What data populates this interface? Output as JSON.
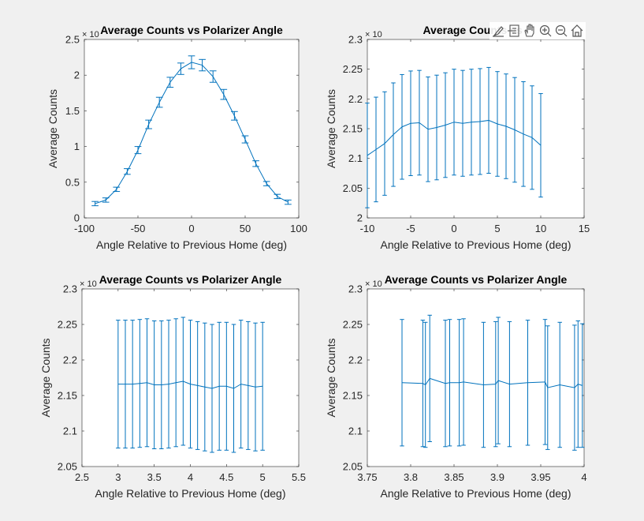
{
  "colors": {
    "series": "#0072BD",
    "background": "#f0f0f0",
    "axes": "#ffffff",
    "axis_line": "#262626"
  },
  "toolbar": {
    "icons": [
      "edit-plot-icon",
      "data-tips-icon",
      "pan-icon",
      "zoom-in-icon",
      "zoom-out-icon",
      "home-icon"
    ]
  },
  "chart_data": [
    {
      "type": "line",
      "title": "Average Counts vs Polarizer Angle",
      "xlabel": "Angle Relative to Previous Home (deg)",
      "ylabel": "Average Counts",
      "exponent": "× 10",
      "xlim": [
        -100,
        100
      ],
      "ylim": [
        0,
        2.5
      ],
      "xticks": [
        -100,
        -50,
        0,
        50,
        100
      ],
      "yticks": [
        0,
        0.5,
        1,
        1.5,
        2,
        2.5
      ],
      "xtick_labels": [
        "-100",
        "-50",
        "0",
        "50",
        "100"
      ],
      "ytick_labels": [
        "0",
        "0.5",
        "1",
        "1.5",
        "2",
        "2.5"
      ],
      "grid": false,
      "series": [
        {
          "x": [
            -90,
            -80,
            -70,
            -60,
            -50,
            -40,
            -30,
            -20,
            -10,
            0,
            10,
            20,
            30,
            40,
            50,
            60,
            70,
            80,
            90
          ],
          "y": [
            0.2,
            0.25,
            0.4,
            0.65,
            0.95,
            1.31,
            1.62,
            1.9,
            2.09,
            2.18,
            2.14,
            1.98,
            1.73,
            1.43,
            1.1,
            0.76,
            0.48,
            0.3,
            0.22
          ],
          "err": [
            0.03,
            0.03,
            0.03,
            0.04,
            0.05,
            0.06,
            0.07,
            0.07,
            0.08,
            0.09,
            0.08,
            0.08,
            0.07,
            0.06,
            0.05,
            0.04,
            0.03,
            0.03,
            0.03
          ]
        }
      ]
    },
    {
      "type": "line",
      "title": "Average Counts vs I",
      "xlabel": "Angle Relative to Previous Home (deg)",
      "ylabel": "Average Counts",
      "exponent": "× 10",
      "xlim": [
        -10,
        15
      ],
      "ylim": [
        2,
        2.3
      ],
      "xticks": [
        -10,
        -5,
        0,
        5,
        10,
        15
      ],
      "yticks": [
        2,
        2.05,
        2.1,
        2.15,
        2.2,
        2.25,
        2.3
      ],
      "xtick_labels": [
        "-10",
        "-5",
        "0",
        "5",
        "10",
        "15"
      ],
      "ytick_labels": [
        "2",
        "2.05",
        "2.1",
        "2.15",
        "2.2",
        "2.25",
        "2.3"
      ],
      "grid": false,
      "series": [
        {
          "x": [
            -10,
            -9,
            -8,
            -7,
            -6,
            -5,
            -4,
            -3,
            -2,
            -1,
            0,
            1,
            2,
            3,
            4,
            5,
            6,
            7,
            8,
            9,
            10
          ],
          "y": [
            2.105,
            2.115,
            2.125,
            2.14,
            2.153,
            2.159,
            2.16,
            2.149,
            2.152,
            2.156,
            2.161,
            2.159,
            2.161,
            2.162,
            2.164,
            2.158,
            2.154,
            2.148,
            2.141,
            2.135,
            2.122
          ],
          "err": [
            0.088,
            0.088,
            0.087,
            0.087,
            0.088,
            0.088,
            0.088,
            0.088,
            0.088,
            0.088,
            0.089,
            0.089,
            0.089,
            0.089,
            0.089,
            0.088,
            0.088,
            0.088,
            0.088,
            0.087,
            0.087
          ]
        }
      ]
    },
    {
      "type": "line",
      "title": "Average Counts vs Polarizer Angle",
      "xlabel": "Angle Relative to Previous Home (deg)",
      "ylabel": "Average Counts",
      "exponent": "× 10",
      "xlim": [
        2.5,
        5.5
      ],
      "ylim": [
        2.05,
        2.3
      ],
      "xticks": [
        2.5,
        3,
        3.5,
        4,
        4.5,
        5,
        5.5
      ],
      "yticks": [
        2.05,
        2.1,
        2.15,
        2.2,
        2.25,
        2.3
      ],
      "xtick_labels": [
        "2.5",
        "3",
        "3.5",
        "4",
        "4.5",
        "5",
        "5.5"
      ],
      "ytick_labels": [
        "2.05",
        "2.1",
        "2.15",
        "2.2",
        "2.25",
        "2.3"
      ],
      "grid": false,
      "series": [
        {
          "x": [
            3.0,
            3.1,
            3.2,
            3.3,
            3.4,
            3.5,
            3.6,
            3.7,
            3.8,
            3.9,
            4.0,
            4.1,
            4.2,
            4.3,
            4.4,
            4.5,
            4.6,
            4.7,
            4.8,
            4.9,
            5.0
          ],
          "y": [
            2.166,
            2.166,
            2.166,
            2.167,
            2.168,
            2.165,
            2.165,
            2.166,
            2.168,
            2.17,
            2.166,
            2.164,
            2.162,
            2.16,
            2.163,
            2.163,
            2.16,
            2.166,
            2.164,
            2.162,
            2.163
          ],
          "err": [
            0.09,
            0.09,
            0.09,
            0.09,
            0.09,
            0.09,
            0.09,
            0.09,
            0.09,
            0.09,
            0.09,
            0.09,
            0.09,
            0.09,
            0.09,
            0.09,
            0.09,
            0.09,
            0.09,
            0.09,
            0.09
          ]
        }
      ]
    },
    {
      "type": "line",
      "title": "Average Counts vs Polarizer Angle",
      "xlabel": "Angle Relative to Previous Home (deg)",
      "ylabel": "Average Counts",
      "exponent": "× 10",
      "xlim": [
        3.75,
        4
      ],
      "ylim": [
        2.05,
        2.3
      ],
      "xticks": [
        3.75,
        3.8,
        3.85,
        3.9,
        3.95,
        4
      ],
      "yticks": [
        2.05,
        2.1,
        2.15,
        2.2,
        2.25,
        2.3
      ],
      "xtick_labels": [
        "3.75",
        "3.8",
        "3.85",
        "3.9",
        "3.95",
        "4"
      ],
      "ytick_labels": [
        "2.05",
        "2.1",
        "2.15",
        "2.2",
        "2.25",
        "2.3"
      ],
      "grid": false,
      "series": [
        {
          "x": [
            3.79,
            3.814,
            3.817,
            3.822,
            3.84,
            3.845,
            3.856,
            3.861,
            3.884,
            3.898,
            3.901,
            3.914,
            3.935,
            3.955,
            3.958,
            3.972,
            3.989,
            3.993,
            3.998
          ],
          "y": [
            2.168,
            2.167,
            2.165,
            2.174,
            2.167,
            2.168,
            2.168,
            2.169,
            2.165,
            2.166,
            2.171,
            2.166,
            2.168,
            2.169,
            2.161,
            2.165,
            2.161,
            2.166,
            2.164
          ],
          "err": [
            0.089,
            0.089,
            0.088,
            0.089,
            0.089,
            0.089,
            0.089,
            0.089,
            0.088,
            0.088,
            0.089,
            0.088,
            0.088,
            0.088,
            0.087,
            0.088,
            0.088,
            0.089,
            0.087
          ]
        }
      ]
    }
  ]
}
